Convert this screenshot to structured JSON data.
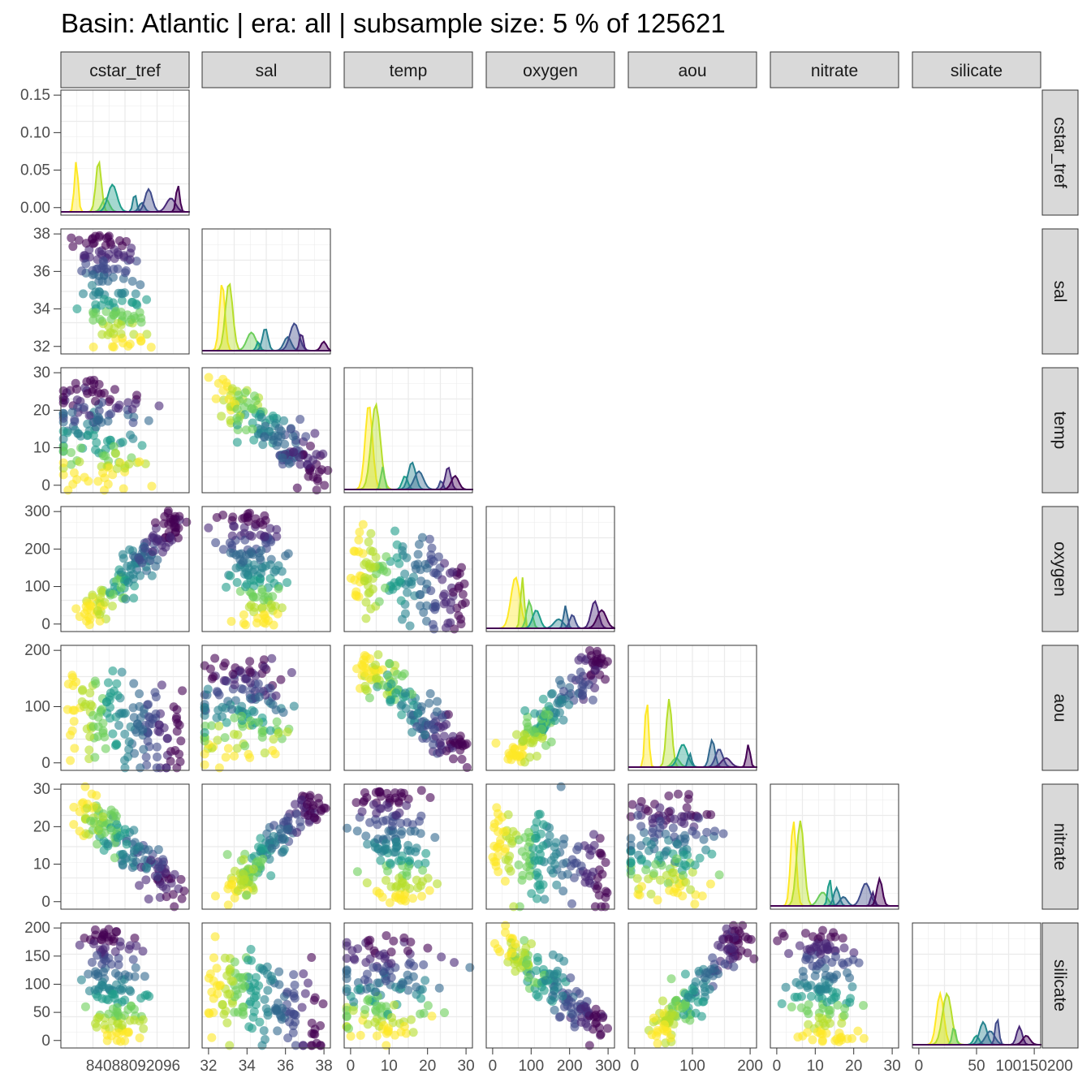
{
  "chart_data": {
    "type": "scatter",
    "title": "Basin: Atlantic | era: all | subsample size: 5 % of 125621",
    "variables": [
      "cstar_tref",
      "sal",
      "temp",
      "oxygen",
      "aou",
      "nitrate",
      "silicate"
    ],
    "layout": "lower-triangle scatterplot matrix with density curves on the diagonal",
    "color_scale": "viridis",
    "colors": {
      "viridis": [
        "#440154",
        "#482777",
        "#3f4a8a",
        "#31678e",
        "#26838f",
        "#1f9d8a",
        "#6cce5a",
        "#b6de2b",
        "#fee825"
      ],
      "strip_fill": "#d9d9d9",
      "strip_border": "#333333",
      "panel_border": "#333333",
      "grid": "#ebebeb"
    },
    "grid": true,
    "legend": "none",
    "axes": {
      "cstar_tref": {
        "ticks": [
          8408,
          8809,
          2096
        ],
        "tick_labels": [
          "8408",
          "8809",
          "2096"
        ],
        "x_tick_labels_shown": [
          "8408809209600"
        ],
        "range_note": "x tick labels overlap in original"
      },
      "sal": {
        "ticks": [
          32,
          34,
          36,
          38
        ],
        "tick_labels": [
          "32",
          "34",
          "36",
          "38"
        ],
        "range": [
          31.9,
          38.1
        ]
      },
      "temp": {
        "ticks": [
          0,
          10,
          20,
          30
        ],
        "tick_labels": [
          "0",
          "10",
          "20",
          "30"
        ],
        "range": [
          -2.5,
          30.5
        ]
      },
      "oxygen": {
        "ticks": [
          0,
          100,
          200,
          300
        ],
        "tick_labels": [
          "0",
          "100",
          "200",
          "300"
        ],
        "range": [
          -5,
          345
        ]
      },
      "aou": {
        "ticks": [
          0,
          100,
          200
        ],
        "tick_labels": [
          "0",
          "100",
          "200"
        ],
        "range": [
          -12,
          272
        ]
      },
      "nitrate": {
        "ticks": [
          0,
          10,
          20,
          30
        ],
        "tick_labels": [
          "0",
          "10",
          "20",
          "30"
        ],
        "range": [
          -0.5,
          35
        ]
      },
      "silicate": {
        "ticks": [
          0,
          50,
          100,
          150,
          200
        ],
        "tick_labels": [
          "0",
          "50",
          "100",
          "150",
          "200"
        ],
        "range": [
          -3,
          206
        ]
      }
    },
    "cstar_density_ticks": {
      "ticks": [
        0.0,
        0.05,
        0.1,
        0.15
      ],
      "tick_labels": [
        "0.00",
        "0.05",
        "0.10",
        "0.15"
      ],
      "range": [
        -0.004,
        0.193
      ]
    },
    "x_bottom_labels": {
      "cstar_tref": "84088092096",
      "sal": [
        "32",
        "34",
        "36",
        "38"
      ],
      "temp": [
        "0",
        "10",
        "20",
        "30"
      ],
      "oxygen": [
        "0",
        "100",
        "200",
        "300"
      ],
      "aou": [
        "0",
        "100",
        "200"
      ],
      "nitrate": [
        "0",
        "10",
        "20",
        "30"
      ],
      "silicate": [
        "0",
        "50",
        "100150200"
      ]
    },
    "x_bottom_label_parts": {
      "cstar_tref": [
        "8408",
        "8809",
        "2096",
        "0"
      ],
      "cstar_edge": "32",
      "oxygen_edge": "0",
      "silicate": [
        "0",
        "50",
        "100",
        "150",
        "200"
      ]
    },
    "left_labels": {
      "cstar_tref": [
        "0.15",
        "0.10",
        "0.05",
        "0.00"
      ],
      "sal": [
        "38",
        "36",
        "34",
        "32"
      ],
      "temp": [
        "30",
        "20",
        "10",
        "0"
      ],
      "oxygen": [
        "300",
        "200",
        "100",
        "0"
      ],
      "aou": [
        "200",
        "100",
        "0"
      ],
      "nitrate": [
        "30",
        "20",
        "10",
        "0"
      ],
      "silicate": [
        "200",
        "150",
        "100",
        "50",
        "0"
      ]
    },
    "representative_points": {
      "sal_vs_cstar": [
        [
          0.06,
          0.62
        ],
        [
          0.12,
          0.78
        ],
        [
          0.28,
          0.72
        ],
        [
          0.44,
          0.48
        ],
        [
          0.55,
          0.45
        ],
        [
          0.73,
          0.38
        ],
        [
          0.88,
          0.27
        ],
        [
          0.52,
          0.11
        ],
        [
          0.58,
          0.06
        ]
      ],
      "temp_vs_sal": [
        [
          0.1,
          0.26
        ],
        [
          0.4,
          0.1
        ],
        [
          0.55,
          0.32
        ],
        [
          0.75,
          0.62
        ],
        [
          0.92,
          0.7
        ]
      ],
      "nitrate_vs_aou": [
        [
          0.08,
          0.09
        ],
        [
          0.35,
          0.45
        ],
        [
          0.62,
          0.78
        ],
        [
          0.9,
          0.98
        ]
      ],
      "silicate_vs_nitrate": [
        [
          0.1,
          0.02
        ],
        [
          0.55,
          0.18
        ],
        [
          0.8,
          0.4
        ],
        [
          0.95,
          0.72
        ]
      ]
    },
    "strip_labels_top": [
      "cstar_tref",
      "sal",
      "temp",
      "oxygen",
      "aou",
      "nitrate",
      "silicate"
    ],
    "strip_labels_right": [
      "cstar_tref",
      "sal",
      "temp",
      "oxygen",
      "aou",
      "nitrate",
      "silicate"
    ]
  }
}
